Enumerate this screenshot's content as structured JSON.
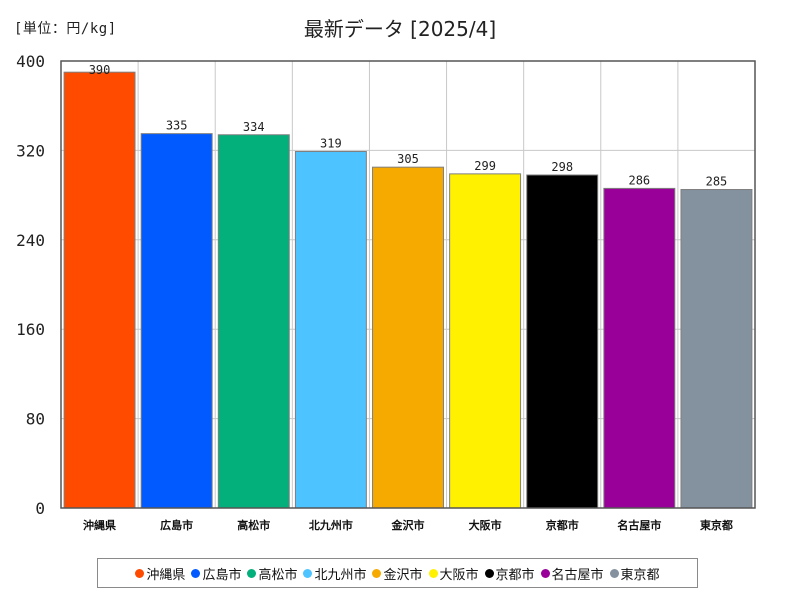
{
  "unit_label": "[単位：円/kg]",
  "title": "最新データ [2025/4]",
  "chart_data": {
    "type": "bar",
    "title": "最新データ [2025/4]",
    "ylabel": "[単位：円/kg]",
    "xlabel": "",
    "ylim": [
      0,
      400
    ],
    "yticks": [
      0,
      80,
      160,
      240,
      320,
      400
    ],
    "grid": true,
    "legend_position": "bottom",
    "categories": [
      "沖縄県",
      "広島市",
      "高松市",
      "北九州市",
      "金沢市",
      "大阪市",
      "京都市",
      "名古屋市",
      "東京都"
    ],
    "values": [
      390,
      335,
      334,
      319,
      305,
      299,
      298,
      286,
      285
    ],
    "colors": [
      "#ff4b00",
      "#005aff",
      "#03af7a",
      "#4dc4ff",
      "#f6aa00",
      "#fff100",
      "#000000",
      "#990099",
      "#84919e"
    ]
  }
}
